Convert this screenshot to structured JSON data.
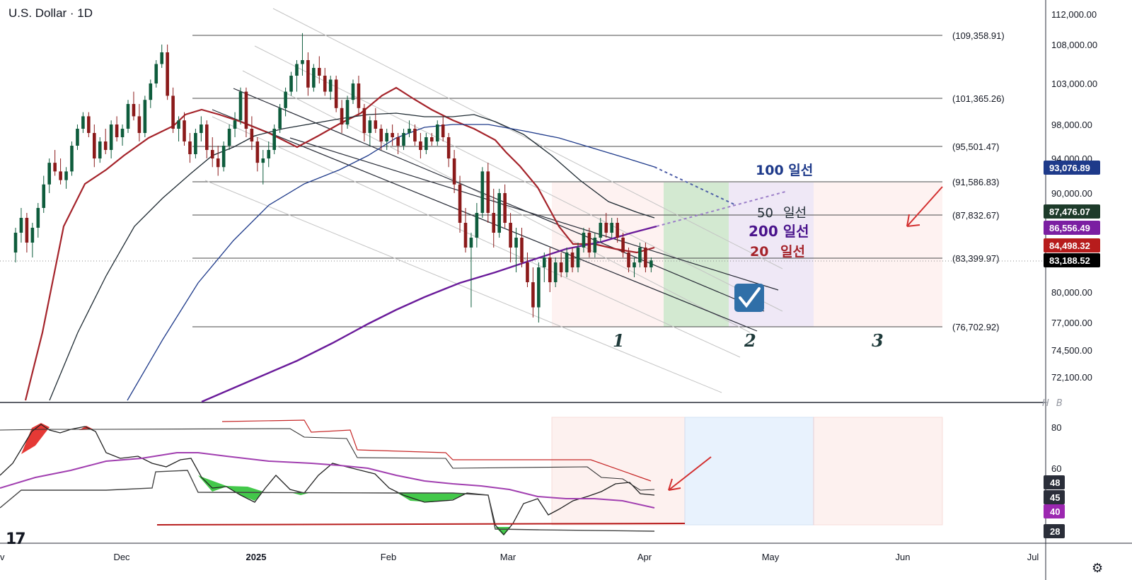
{
  "header": {
    "title": "U.S. Dollar · 1D"
  },
  "watermark": "H B",
  "logo": "17",
  "settings_icon": "gear-icon",
  "chart_data": [
    {
      "type": "candlestick",
      "series": [
        {
          "name": "20 일선",
          "color": "#a5242b"
        },
        {
          "name": "50 일선",
          "color": "#1e2a32"
        },
        {
          "name": "100 일선",
          "color": "#1e3a8a"
        },
        {
          "name": "200 일선",
          "color": "#6a1b9a"
        }
      ],
      "y_axis_ticks": [
        "112,000.00",
        "108,000.00",
        "103,000.00",
        "98,000.00",
        "94,000.00",
        "90,000.00",
        "80,000.00",
        "77,000.00",
        "74,500.00",
        "72,100.00"
      ],
      "x_axis_ticks": [
        "v",
        "Dec",
        "2025",
        "Feb",
        "Mar",
        "Apr",
        "May",
        "Jun",
        "Jul"
      ],
      "price_badges": [
        {
          "label": "93,076.89",
          "color": "#1e3a8a"
        },
        {
          "label": "87,476.07",
          "color": "#1d3b2a"
        },
        {
          "label": "86,556.49",
          "color": "#7b1fa2"
        },
        {
          "label": "84,498.32",
          "color": "#b71c1c"
        },
        {
          "label": "83,188.52",
          "color": "#000000"
        }
      ],
      "fib_levels": [
        "(109,358.91)",
        "(101,365.26)",
        "(95,501.47)",
        "(91,586.83)",
        "(87,832.67)",
        "(83,399.97)",
        "(76,702.92)"
      ],
      "annotations": {
        "ma_labels": [
          "100 일선",
          "50",
          "일선",
          "200 일선",
          "20",
          "일선"
        ],
        "zone_numbers": [
          "1",
          "2",
          "3"
        ],
        "check_icon": "check-icon",
        "arrow_icon": "arrow-icon"
      },
      "candles": [
        {
          "o": 84.0,
          "h": 86.5,
          "l": 83.0,
          "c": 86.0
        },
        {
          "o": 86.0,
          "h": 88.5,
          "l": 85.0,
          "c": 87.5
        },
        {
          "o": 87.5,
          "h": 88.0,
          "l": 84.0,
          "c": 85.0
        },
        {
          "o": 85.0,
          "h": 87.0,
          "l": 83.5,
          "c": 86.5
        },
        {
          "o": 86.5,
          "h": 89.0,
          "l": 85.5,
          "c": 88.5
        },
        {
          "o": 88.5,
          "h": 92.0,
          "l": 88.0,
          "c": 91.0
        },
        {
          "o": 91.0,
          "h": 94.0,
          "l": 90.0,
          "c": 93.5
        },
        {
          "o": 93.5,
          "h": 95.0,
          "l": 92.0,
          "c": 92.5
        },
        {
          "o": 92.5,
          "h": 94.0,
          "l": 91.0,
          "c": 91.5
        },
        {
          "o": 91.5,
          "h": 93.0,
          "l": 90.5,
          "c": 92.5
        },
        {
          "o": 92.5,
          "h": 96.0,
          "l": 92.0,
          "c": 95.5
        },
        {
          "o": 95.5,
          "h": 98.0,
          "l": 95.0,
          "c": 97.5
        },
        {
          "o": 97.5,
          "h": 99.5,
          "l": 97.0,
          "c": 99.0
        },
        {
          "o": 99.0,
          "h": 99.5,
          "l": 96.5,
          "c": 97.0
        },
        {
          "o": 97.0,
          "h": 98.0,
          "l": 93.0,
          "c": 94.0
        },
        {
          "o": 94.0,
          "h": 96.5,
          "l": 93.5,
          "c": 96.0
        },
        {
          "o": 96.0,
          "h": 97.5,
          "l": 94.5,
          "c": 95.0
        },
        {
          "o": 95.0,
          "h": 98.5,
          "l": 94.0,
          "c": 98.0
        },
        {
          "o": 98.0,
          "h": 99.0,
          "l": 96.0,
          "c": 96.5
        },
        {
          "o": 96.5,
          "h": 98.0,
          "l": 95.5,
          "c": 97.5
        },
        {
          "o": 97.5,
          "h": 101.0,
          "l": 97.0,
          "c": 100.5
        },
        {
          "o": 100.5,
          "h": 102.0,
          "l": 98.5,
          "c": 99.0
        },
        {
          "o": 99.0,
          "h": 100.5,
          "l": 96.0,
          "c": 97.0
        },
        {
          "o": 97.0,
          "h": 101.5,
          "l": 96.5,
          "c": 101.0
        },
        {
          "o": 101.0,
          "h": 103.5,
          "l": 100.0,
          "c": 103.0
        },
        {
          "o": 103.0,
          "h": 106.0,
          "l": 102.5,
          "c": 105.5
        },
        {
          "o": 105.5,
          "h": 108.0,
          "l": 105.0,
          "c": 107.0
        },
        {
          "o": 107.0,
          "h": 108.0,
          "l": 101.0,
          "c": 101.5
        },
        {
          "o": 101.5,
          "h": 102.5,
          "l": 97.0,
          "c": 97.5
        },
        {
          "o": 97.5,
          "h": 99.0,
          "l": 96.0,
          "c": 98.5
        },
        {
          "o": 98.5,
          "h": 99.5,
          "l": 95.5,
          "c": 96.0
        },
        {
          "o": 96.0,
          "h": 97.0,
          "l": 93.5,
          "c": 94.5
        },
        {
          "o": 94.5,
          "h": 97.5,
          "l": 94.0,
          "c": 97.0
        },
        {
          "o": 97.0,
          "h": 99.0,
          "l": 96.0,
          "c": 98.0
        },
        {
          "o": 98.0,
          "h": 98.5,
          "l": 94.0,
          "c": 95.0
        },
        {
          "o": 95.0,
          "h": 96.5,
          "l": 93.0,
          "c": 94.0
        },
        {
          "o": 94.0,
          "h": 95.5,
          "l": 92.0,
          "c": 93.0
        },
        {
          "o": 93.0,
          "h": 96.0,
          "l": 92.5,
          "c": 95.5
        },
        {
          "o": 95.5,
          "h": 98.0,
          "l": 95.0,
          "c": 97.5
        },
        {
          "o": 97.5,
          "h": 99.5,
          "l": 96.5,
          "c": 98.5
        },
        {
          "o": 98.5,
          "h": 102.5,
          "l": 98.0,
          "c": 102.0
        },
        {
          "o": 102.0,
          "h": 102.5,
          "l": 96.5,
          "c": 97.5
        },
        {
          "o": 97.5,
          "h": 99.0,
          "l": 95.0,
          "c": 96.0
        },
        {
          "o": 96.0,
          "h": 96.5,
          "l": 92.5,
          "c": 93.5
        },
        {
          "o": 93.5,
          "h": 95.0,
          "l": 91.0,
          "c": 94.0
        },
        {
          "o": 94.0,
          "h": 96.0,
          "l": 93.0,
          "c": 95.0
        },
        {
          "o": 95.0,
          "h": 98.0,
          "l": 94.5,
          "c": 97.5
        },
        {
          "o": 97.5,
          "h": 100.5,
          "l": 97.0,
          "c": 100.0
        },
        {
          "o": 100.0,
          "h": 102.5,
          "l": 99.0,
          "c": 102.0
        },
        {
          "o": 102.0,
          "h": 104.5,
          "l": 101.5,
          "c": 104.0
        },
        {
          "o": 104.0,
          "h": 106.0,
          "l": 102.0,
          "c": 105.5
        },
        {
          "o": 105.5,
          "h": 109.5,
          "l": 104.0,
          "c": 106.0
        },
        {
          "o": 106.0,
          "h": 107.0,
          "l": 101.5,
          "c": 102.5
        },
        {
          "o": 102.5,
          "h": 105.5,
          "l": 102.0,
          "c": 105.0
        },
        {
          "o": 105.0,
          "h": 106.5,
          "l": 103.0,
          "c": 104.0
        },
        {
          "o": 104.0,
          "h": 105.0,
          "l": 101.5,
          "c": 102.0
        },
        {
          "o": 102.0,
          "h": 104.0,
          "l": 101.0,
          "c": 103.5
        },
        {
          "o": 103.5,
          "h": 104.0,
          "l": 99.5,
          "c": 100.0
        },
        {
          "o": 100.0,
          "h": 101.0,
          "l": 97.0,
          "c": 98.0
        },
        {
          "o": 98.0,
          "h": 101.5,
          "l": 97.5,
          "c": 101.0
        },
        {
          "o": 101.0,
          "h": 103.5,
          "l": 100.5,
          "c": 103.0
        },
        {
          "o": 103.0,
          "h": 104.0,
          "l": 99.0,
          "c": 100.0
        },
        {
          "o": 100.0,
          "h": 100.5,
          "l": 96.0,
          "c": 97.0
        },
        {
          "o": 97.0,
          "h": 99.0,
          "l": 95.5,
          "c": 98.5
        },
        {
          "o": 98.5,
          "h": 100.0,
          "l": 97.0,
          "c": 97.5
        },
        {
          "o": 97.5,
          "h": 98.0,
          "l": 95.0,
          "c": 96.0
        },
        {
          "o": 96.0,
          "h": 97.5,
          "l": 95.0,
          "c": 97.0
        },
        {
          "o": 97.0,
          "h": 98.0,
          "l": 95.5,
          "c": 96.5
        },
        {
          "o": 96.5,
          "h": 97.0,
          "l": 94.5,
          "c": 95.5
        },
        {
          "o": 95.5,
          "h": 97.5,
          "l": 95.0,
          "c": 97.0
        },
        {
          "o": 97.0,
          "h": 98.5,
          "l": 96.5,
          "c": 97.5
        },
        {
          "o": 97.5,
          "h": 98.0,
          "l": 95.5,
          "c": 96.0
        },
        {
          "o": 96.0,
          "h": 97.0,
          "l": 94.0,
          "c": 95.0
        },
        {
          "o": 95.0,
          "h": 97.0,
          "l": 94.5,
          "c": 96.5
        },
        {
          "o": 96.5,
          "h": 97.0,
          "l": 95.5,
          "c": 96.0
        },
        {
          "o": 96.0,
          "h": 98.5,
          "l": 95.5,
          "c": 98.0
        },
        {
          "o": 98.0,
          "h": 99.0,
          "l": 96.0,
          "c": 96.5
        },
        {
          "o": 96.5,
          "h": 97.0,
          "l": 93.0,
          "c": 94.0
        },
        {
          "o": 94.0,
          "h": 95.0,
          "l": 90.0,
          "c": 91.0
        },
        {
          "o": 91.0,
          "h": 92.0,
          "l": 86.0,
          "c": 87.0
        },
        {
          "o": 87.0,
          "h": 88.5,
          "l": 84.0,
          "c": 84.5
        },
        {
          "o": 84.5,
          "h": 86.0,
          "l": 78.5,
          "c": 85.5
        },
        {
          "o": 85.5,
          "h": 89.0,
          "l": 84.5,
          "c": 88.0
        },
        {
          "o": 88.0,
          "h": 93.0,
          "l": 87.5,
          "c": 92.5
        },
        {
          "o": 92.5,
          "h": 93.5,
          "l": 87.0,
          "c": 88.0
        },
        {
          "o": 88.0,
          "h": 90.5,
          "l": 84.5,
          "c": 86.0
        },
        {
          "o": 86.0,
          "h": 90.5,
          "l": 85.5,
          "c": 90.0
        },
        {
          "o": 90.0,
          "h": 91.0,
          "l": 86.5,
          "c": 87.0
        },
        {
          "o": 87.0,
          "h": 88.0,
          "l": 83.0,
          "c": 84.5
        },
        {
          "o": 84.5,
          "h": 86.5,
          "l": 82.0,
          "c": 85.5
        },
        {
          "o": 85.5,
          "h": 86.5,
          "l": 82.5,
          "c": 83.0
        },
        {
          "o": 83.0,
          "h": 84.0,
          "l": 80.5,
          "c": 81.0
        },
        {
          "o": 81.0,
          "h": 82.5,
          "l": 77.5,
          "c": 78.5
        },
        {
          "o": 78.5,
          "h": 83.0,
          "l": 77.0,
          "c": 82.5
        },
        {
          "o": 82.5,
          "h": 84.0,
          "l": 81.0,
          "c": 83.5
        },
        {
          "o": 83.5,
          "h": 84.5,
          "l": 80.0,
          "c": 81.0
        },
        {
          "o": 81.0,
          "h": 83.5,
          "l": 80.5,
          "c": 83.0
        },
        {
          "o": 83.0,
          "h": 84.0,
          "l": 81.5,
          "c": 82.0
        },
        {
          "o": 82.0,
          "h": 84.5,
          "l": 81.5,
          "c": 84.0
        },
        {
          "o": 84.0,
          "h": 84.5,
          "l": 82.0,
          "c": 82.5
        },
        {
          "o": 82.5,
          "h": 85.0,
          "l": 82.0,
          "c": 84.5
        },
        {
          "o": 84.5,
          "h": 86.5,
          "l": 84.0,
          "c": 86.0
        },
        {
          "o": 86.0,
          "h": 86.5,
          "l": 83.5,
          "c": 84.0
        },
        {
          "o": 84.0,
          "h": 86.0,
          "l": 83.5,
          "c": 85.5
        },
        {
          "o": 85.5,
          "h": 87.5,
          "l": 85.0,
          "c": 87.0
        },
        {
          "o": 87.0,
          "h": 88.0,
          "l": 85.5,
          "c": 86.0
        },
        {
          "o": 86.0,
          "h": 87.5,
          "l": 85.5,
          "c": 87.0
        },
        {
          "o": 87.0,
          "h": 87.5,
          "l": 85.0,
          "c": 85.5
        },
        {
          "o": 85.5,
          "h": 86.0,
          "l": 83.5,
          "c": 84.0
        },
        {
          "o": 84.0,
          "h": 84.5,
          "l": 82.0,
          "c": 82.5
        },
        {
          "o": 82.5,
          "h": 83.5,
          "l": 81.5,
          "c": 83.0
        },
        {
          "o": 83.0,
          "h": 85.0,
          "l": 82.5,
          "c": 84.5
        },
        {
          "o": 84.5,
          "h": 85.0,
          "l": 82.0,
          "c": 82.5
        },
        {
          "o": 82.5,
          "h": 83.5,
          "l": 82.0,
          "c": 83.2
        }
      ]
    },
    {
      "type": "line",
      "y_axis_ticks": [
        "80",
        "60"
      ],
      "value_badges": [
        {
          "label": "48",
          "color": "#2a2e39"
        },
        {
          "label": "45",
          "color": "#2a2e39"
        },
        {
          "label": "40",
          "color": "#9c27b0"
        },
        {
          "label": "28",
          "color": "#2a2e39"
        }
      ]
    }
  ]
}
